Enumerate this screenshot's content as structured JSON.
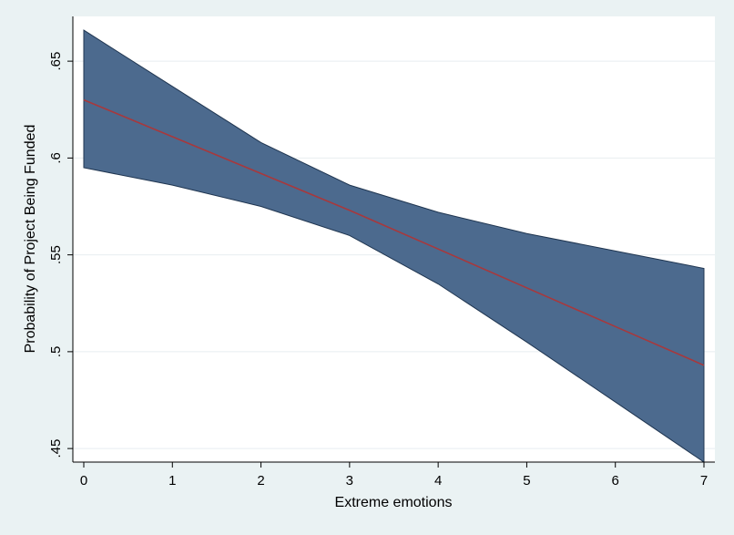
{
  "chart_data": {
    "type": "line",
    "title": "",
    "xlabel": "Extreme emotions",
    "ylabel": "Probability of Project Being Funded",
    "xlim": [
      0,
      7
    ],
    "ylim": [
      0.443,
      0.667
    ],
    "x_ticks": [
      0,
      1,
      2,
      3,
      4,
      5,
      6,
      7
    ],
    "x_tick_labels": [
      "0",
      "1",
      "2",
      "3",
      "4",
      "5",
      "6",
      "7"
    ],
    "y_ticks": [
      0.45,
      0.5,
      0.55,
      0.6,
      0.65
    ],
    "y_tick_labels": [
      ".45",
      ".5",
      ".55",
      ".6",
      ".65"
    ],
    "grid": true,
    "legend": "none",
    "x": [
      0,
      1,
      2,
      3,
      4,
      5,
      6,
      7
    ],
    "series": [
      {
        "values": [
          0.63,
          0.611,
          0.592,
          0.573,
          0.553,
          0.533,
          0.513,
          0.493
        ]
      }
    ],
    "ci_upper": [
      0.666,
      0.637,
      0.608,
      0.586,
      0.572,
      0.561,
      0.552,
      0.543
    ],
    "ci_lower": [
      0.595,
      0.586,
      0.575,
      0.56,
      0.535,
      0.505,
      0.474,
      0.443
    ],
    "colors": {
      "background": "#eaf2f3",
      "plot_background": "#ffffff",
      "band": "#4c6a8e",
      "band_edge": "#1f3550",
      "line": "#a8383c",
      "grid": "#e8eef0"
    }
  }
}
